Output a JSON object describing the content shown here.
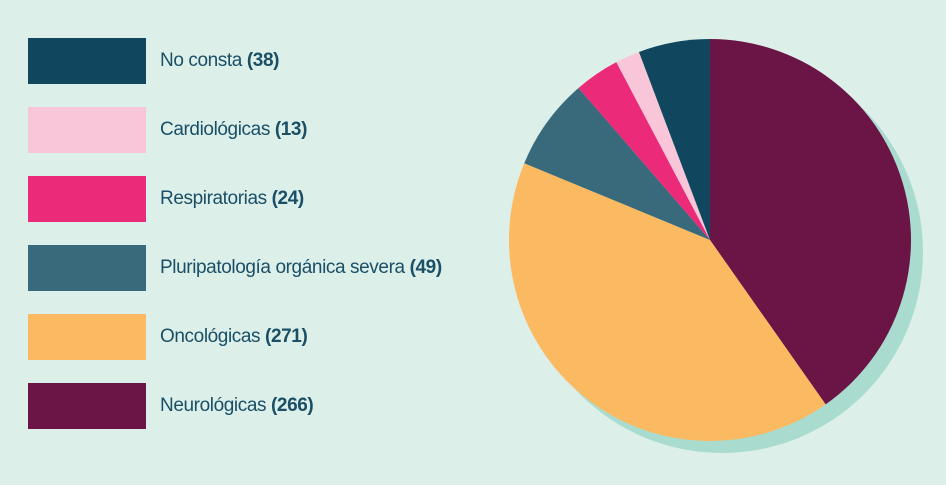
{
  "chart_data": {
    "type": "pie",
    "categories": [
      "No consta",
      "Cardiológicas",
      "Respiratorias",
      "Pluripatología orgánica severa",
      "Oncológicas",
      "Neurológicas"
    ],
    "values": [
      38,
      13,
      24,
      49,
      271,
      266
    ],
    "legend_counts": [
      "(38)",
      "(13)",
      "(24)",
      "(49)",
      "(271)",
      "(266)"
    ],
    "colors": [
      "#10475f",
      "#f9c6d9",
      "#ec2a7a",
      "#386a7c",
      "#fbb962",
      "#6b1547"
    ],
    "shadow_color": "#a9dccf",
    "background": "#dcefe9",
    "legend_placement": "left",
    "start": "top, clockwise from Neurológicas"
  }
}
